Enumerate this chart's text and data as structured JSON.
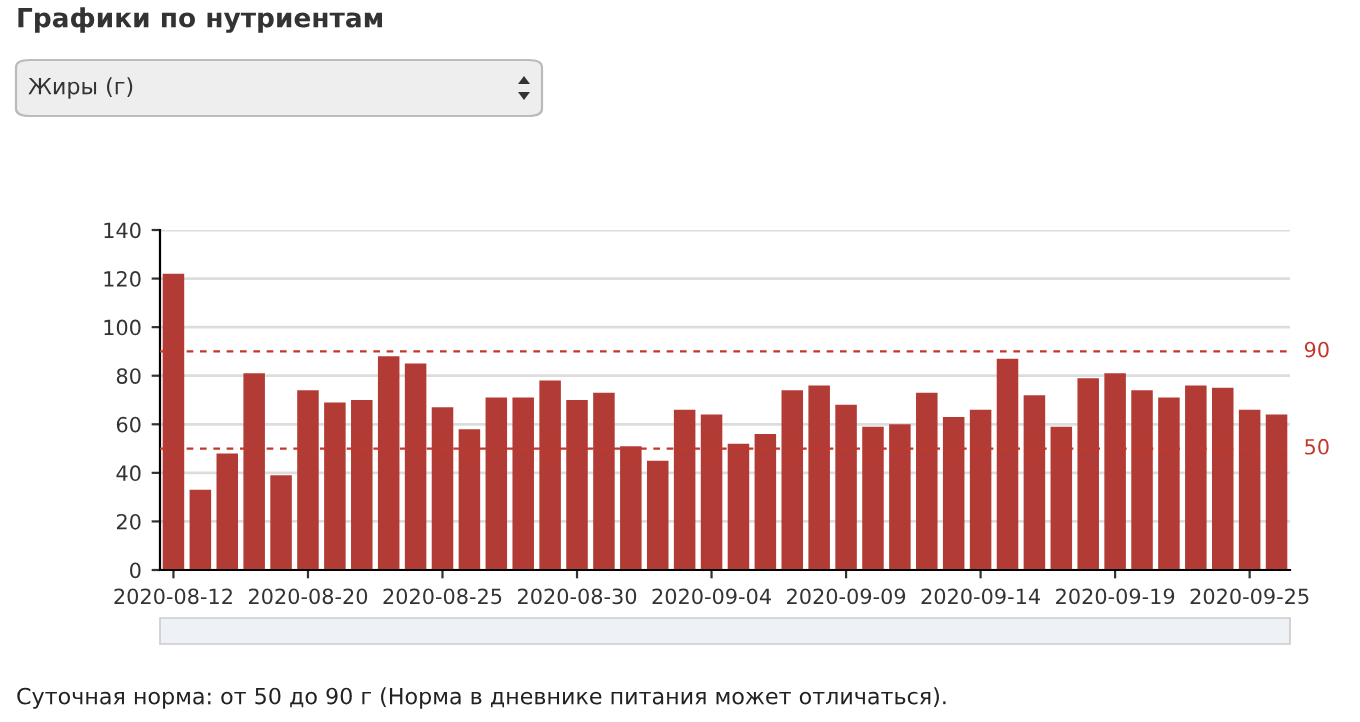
{
  "chart_data": {
    "type": "bar",
    "title": "Графики по нутриентам",
    "subtitle": "Жиры (г)",
    "categories": [
      "2020-08-12",
      null,
      null,
      null,
      null,
      "2020-08-20",
      null,
      null,
      null,
      null,
      "2020-08-25",
      null,
      null,
      null,
      null,
      "2020-08-30",
      null,
      null,
      null,
      null,
      "2020-09-04",
      null,
      null,
      null,
      null,
      "2020-09-09",
      null,
      null,
      null,
      null,
      "2020-09-14",
      null,
      null,
      null,
      null,
      "2020-09-19",
      null,
      null,
      null,
      null,
      "2020-09-25",
      null
    ],
    "values": [
      122,
      33,
      48,
      81,
      39,
      74,
      69,
      70,
      88,
      85,
      67,
      58,
      71,
      71,
      78,
      70,
      73,
      51,
      45,
      66,
      64,
      52,
      56,
      74,
      76,
      68,
      59,
      60,
      73,
      63,
      66,
      87,
      72,
      59,
      79,
      81,
      74,
      71,
      76,
      75,
      66,
      64
    ],
    "color": "#b23c35",
    "ylim": [
      0,
      140
    ],
    "yticks": [
      0,
      20,
      40,
      60,
      80,
      100,
      120,
      140
    ],
    "grid": "y",
    "ref_lines": [
      {
        "axis": "y",
        "value": 90,
        "label": "90",
        "color": "#c0392b",
        "line_style": "dashed"
      },
      {
        "axis": "y",
        "value": 50,
        "label": "50",
        "color": "#c0392b",
        "line_style": "dashed"
      }
    ],
    "annotations": [
      "Суточная норма: от 50 до 90 г (Норма в дневнике питания может отличаться)."
    ]
  }
}
